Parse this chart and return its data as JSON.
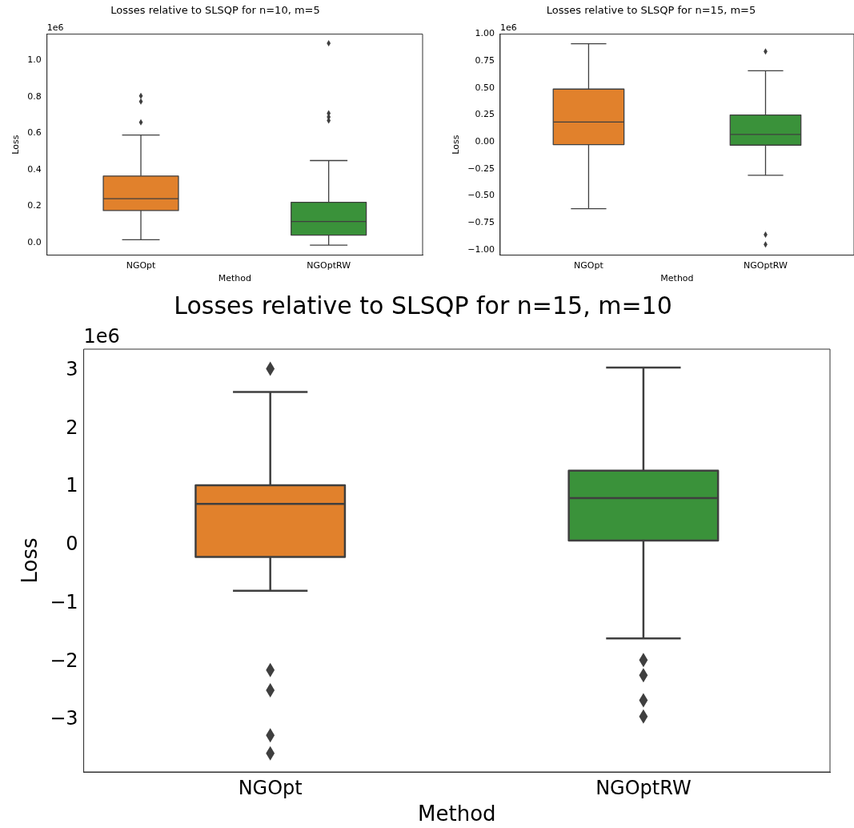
{
  "chart_data": [
    {
      "type": "box",
      "title": "Losses relative to SLSQP for n=10, m=5",
      "xlabel": "Method",
      "ylabel": "Loss",
      "categories": [
        "NGOpt",
        "NGOptRW"
      ],
      "colors": [
        "#e1812c",
        "#3a923a"
      ],
      "boxes": [
        {
          "low": 0.015,
          "q1": 0.175,
          "median": 0.24,
          "q3": 0.365,
          "high": 0.59,
          "outliers": [
            0.66,
            0.775,
            0.805
          ]
        },
        {
          "low": -0.015,
          "q1": 0.04,
          "median": 0.115,
          "q3": 0.22,
          "high": 0.45,
          "outliers": [
            0.67,
            0.69,
            0.71,
            1.095
          ]
        }
      ],
      "ylim": [
        -0.07,
        1.145
      ],
      "yticks": [
        {
          "value": 0,
          "label": "0.0"
        },
        0.2,
        0.4,
        0.6,
        0.8,
        {
          "value": 1,
          "label": "1.0"
        }
      ],
      "annotations": [
        "1e6"
      ],
      "grid": false
    },
    {
      "type": "box",
      "title": "Losses relative to SLSQP for n=15, m=5",
      "xlabel": "Method",
      "ylabel": "Loss",
      "categories": [
        "NGOpt",
        "NGOptRW"
      ],
      "colors": [
        "#e1812c",
        "#3a923a"
      ],
      "boxes": [
        {
          "low": -0.62,
          "q1": -0.025,
          "median": 0.185,
          "q3": 0.49,
          "high": 0.91
        },
        {
          "low": -0.31,
          "q1": -0.03,
          "median": 0.07,
          "q3": 0.25,
          "high": 0.66,
          "outliers": [
            0.84,
            -0.86,
            -0.95
          ]
        }
      ],
      "ylim": [
        -1.05,
        1.0
      ],
      "yticks": [
        {
          "value": -1,
          "label": "−1.00"
        },
        {
          "value": -0.75,
          "label": "−0.75"
        },
        {
          "value": -0.5,
          "label": "−0.50"
        },
        {
          "value": -0.25,
          "label": "−0.25"
        },
        {
          "value": 0,
          "label": "0.00"
        },
        0.25,
        {
          "value": 0.5,
          "label": "0.50"
        },
        0.75,
        {
          "value": 1,
          "label": "1.00"
        }
      ],
      "annotations": [
        "1e6"
      ],
      "grid": false
    },
    {
      "type": "box",
      "title": "Losses relative to SLSQP for n=15, m=10",
      "xlabel": "Method",
      "ylabel": "Loss",
      "categories": [
        "NGOpt",
        "NGOptRW"
      ],
      "colors": [
        "#e1812c",
        "#3a923a"
      ],
      "boxes": [
        {
          "low": -0.78,
          "q1": -0.2,
          "median": 0.71,
          "q3": 1.03,
          "high": 2.63,
          "outliers": [
            3.03,
            -2.14,
            -2.49,
            -3.26,
            -3.57
          ]
        },
        {
          "low": -1.6,
          "q1": 0.08,
          "median": 0.81,
          "q3": 1.28,
          "high": 3.05,
          "outliers": [
            -1.97,
            -2.23,
            -2.66,
            -2.94
          ]
        }
      ],
      "ylim": [
        -3.89,
        3.365
      ],
      "yticks": [
        {
          "value": -3,
          "label": "−3"
        },
        {
          "value": -2,
          "label": "−2"
        },
        {
          "value": -1,
          "label": "−1"
        },
        0,
        1,
        2,
        3
      ],
      "annotations": [
        "1e6"
      ],
      "grid": false
    }
  ]
}
